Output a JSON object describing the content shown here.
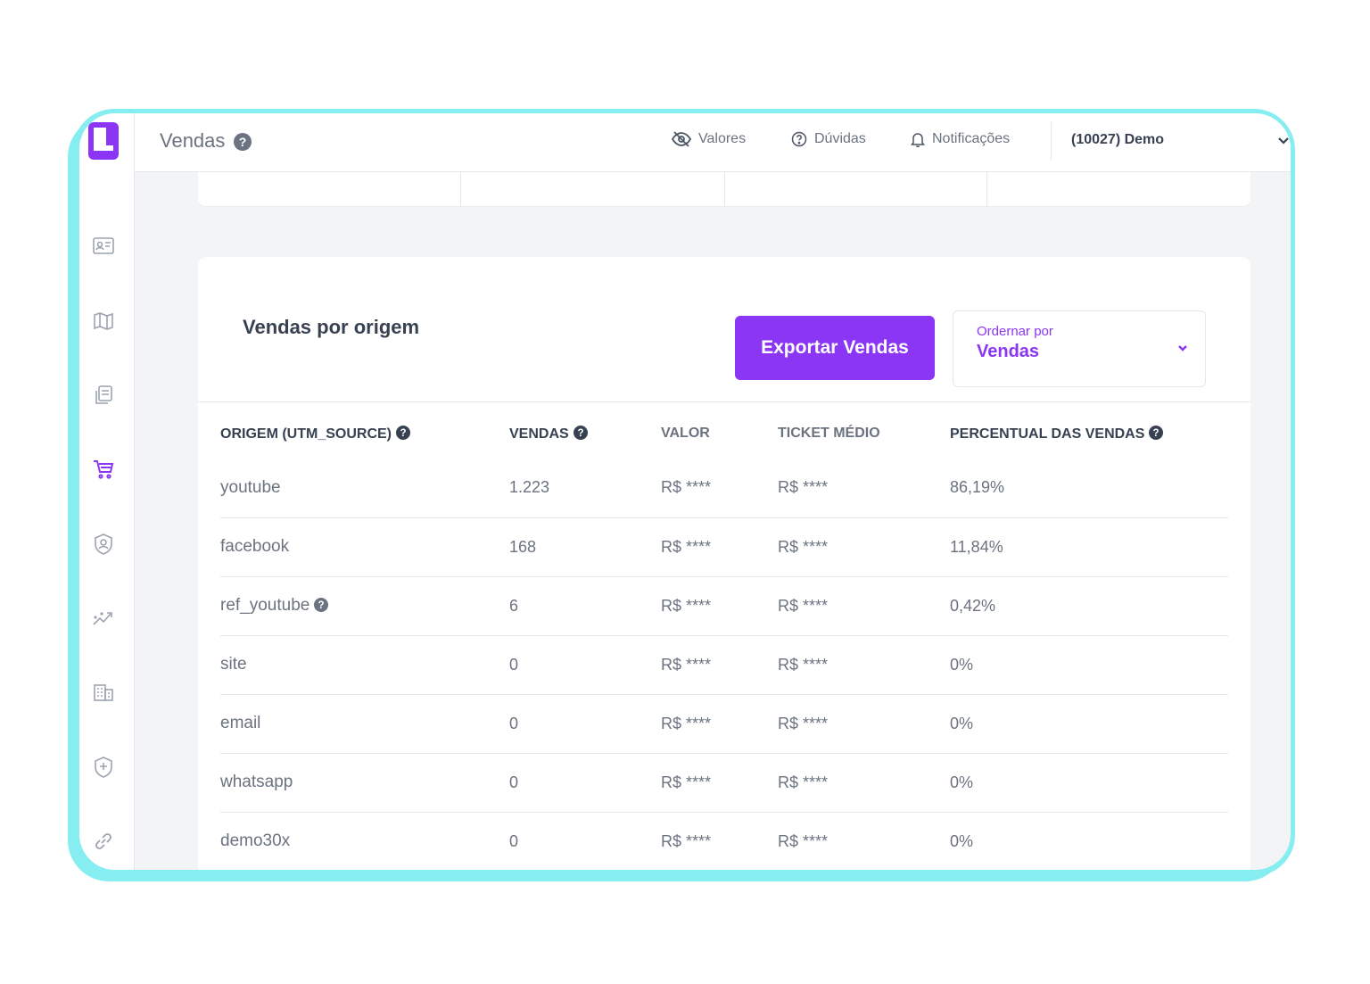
{
  "header": {
    "title": "Vendas",
    "items": [
      {
        "label": "Valores",
        "icon": "eye-off-icon"
      },
      {
        "label": "Dúvidas",
        "icon": "question-circle-icon"
      },
      {
        "label": "Notificações",
        "icon": "bell-icon"
      }
    ],
    "account": "(10027) Demo"
  },
  "sidebar": {
    "items": [
      {
        "icon": "id-card-icon"
      },
      {
        "icon": "map-icon"
      },
      {
        "icon": "copy-document-icon"
      },
      {
        "icon": "cart-icon",
        "active": true
      },
      {
        "icon": "shield-user-icon"
      },
      {
        "icon": "chart-trend-icon"
      },
      {
        "icon": "building-icon"
      },
      {
        "icon": "shield-plus-icon"
      },
      {
        "icon": "link-icon"
      }
    ]
  },
  "card": {
    "title": "Vendas por origem",
    "export_label": "Exportar Vendas",
    "sort": {
      "label": "Ordernar por",
      "value": "Vendas"
    }
  },
  "table": {
    "columns": [
      "ORIGEM (UTM_SOURCE)",
      "VENDAS",
      "VALOR",
      "TICKET MÉDIO",
      "PERCENTUAL DAS VENDAS"
    ],
    "rows": [
      {
        "origem": "youtube",
        "vendas": "1.223",
        "valor": "R$ ****",
        "ticket": "R$ ****",
        "percentual": "86,19%"
      },
      {
        "origem": "facebook",
        "vendas": "168",
        "valor": "R$ ****",
        "ticket": "R$ ****",
        "percentual": "11,84%"
      },
      {
        "origem": "ref_youtube",
        "vendas": "6",
        "valor": "R$ ****",
        "ticket": "R$ ****",
        "percentual": "0,42%"
      },
      {
        "origem": "site",
        "vendas": "0",
        "valor": "R$ ****",
        "ticket": "R$ ****",
        "percentual": "0%"
      },
      {
        "origem": "email",
        "vendas": "0",
        "valor": "R$ ****",
        "ticket": "R$ ****",
        "percentual": "0%"
      },
      {
        "origem": "whatsapp",
        "vendas": "0",
        "valor": "R$ ****",
        "ticket": "R$ ****",
        "percentual": "0%"
      },
      {
        "origem": "demo30x",
        "vendas": "0",
        "valor": "R$ ****",
        "ticket": "R$ ****",
        "percentual": "0%"
      }
    ]
  },
  "colors": {
    "accent": "#8b36f5",
    "frame": "#86eef0"
  }
}
